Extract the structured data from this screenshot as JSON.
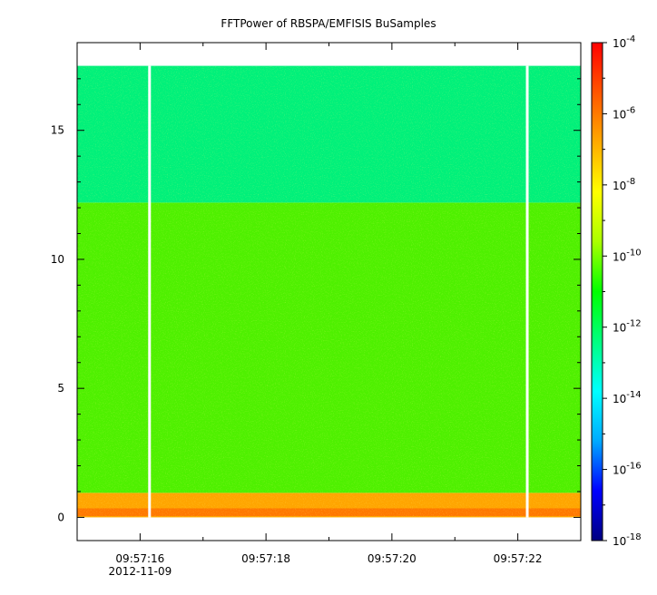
{
  "chart_data": {
    "type": "heatmap",
    "title": "FFTPower of RBSPA/EMFISIS  BuSamples",
    "xlabel": "",
    "ylabel": "",
    "x_ticks": [
      {
        "label": "09:57:16",
        "date_label": "2012-11-09",
        "value": 16
      },
      {
        "label": "09:57:18",
        "value": 18
      },
      {
        "label": "09:57:20",
        "value": 20
      },
      {
        "label": "09:57:22",
        "value": 22
      }
    ],
    "x_range_seconds": [
      15.0,
      23.0
    ],
    "y_ticks": [
      0,
      5,
      10,
      15
    ],
    "ylim": [
      -0.9,
      18.4
    ],
    "colorbar": {
      "scale": "log",
      "range": [
        1e-18,
        0.0001
      ],
      "tick_labels": [
        {
          "base": "10",
          "exp": "-4",
          "value": -4
        },
        {
          "base": "10",
          "exp": "-6",
          "value": -6
        },
        {
          "base": "10",
          "exp": "-8",
          "value": -8
        },
        {
          "base": "10",
          "exp": "-10",
          "value": -10
        },
        {
          "base": "10",
          "exp": "-12",
          "value": -12
        },
        {
          "base": "10",
          "exp": "-14",
          "value": -14
        },
        {
          "base": "10",
          "exp": "-16",
          "value": -16
        },
        {
          "base": "10",
          "exp": "-18",
          "value": -18
        }
      ],
      "colors": [
        "#000080",
        "#0000ff",
        "#00aaff",
        "#00ffff",
        "#00ff80",
        "#00ff00",
        "#aaff00",
        "#ffff00",
        "#ffaa00",
        "#ff5500",
        "#ff0000"
      ]
    },
    "bands": [
      {
        "y_min": 0.0,
        "y_max": 0.95,
        "log_power": -8.3,
        "color": "#ffa500"
      },
      {
        "y_min": 0.95,
        "y_max": 12.2,
        "log_power": -10.2,
        "color": "#4ef000"
      },
      {
        "y_min": 12.2,
        "y_max": 17.5,
        "log_power": -11.6,
        "color": "#00f07a"
      }
    ],
    "gaps_seconds": [
      16.15,
      22.15
    ],
    "grid": false
  }
}
